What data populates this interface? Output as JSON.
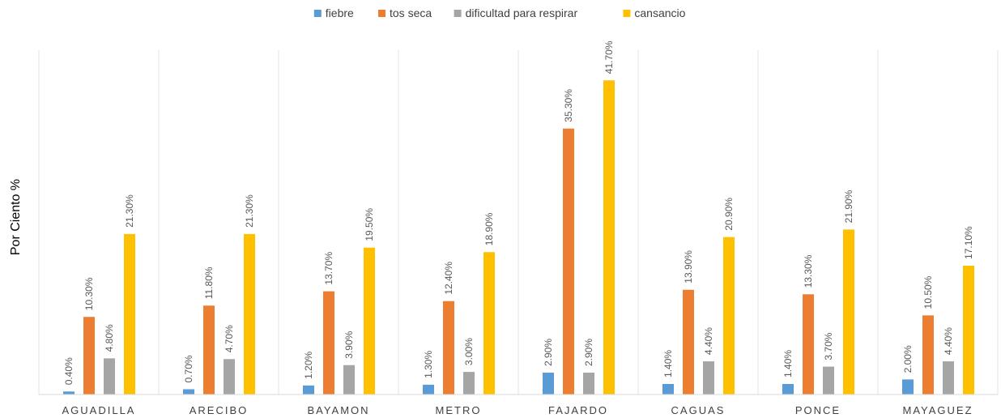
{
  "chart_data": {
    "type": "bar",
    "title": "",
    "xlabel": "",
    "ylabel": "Por Ciento %",
    "ylim": [
      0,
      45
    ],
    "grid": "vertical separators between categories",
    "legend_position": "top",
    "categories": [
      "AGUADILLA",
      "ARECIBO",
      "BAYAMON",
      "METRO",
      "FAJARDO",
      "CAGUAS",
      "PONCE",
      "MAYAGUEZ"
    ],
    "series": [
      {
        "name": "fiebre",
        "color": "#5B9BD5",
        "values": [
          0.4,
          0.7,
          1.2,
          1.3,
          2.9,
          1.4,
          1.4,
          2.0
        ],
        "labels": [
          "0.40%",
          "0.70%",
          "1.20%",
          "1.30%",
          "2.90%",
          "1.40%",
          "1.40%",
          "2.00%"
        ]
      },
      {
        "name": "tos seca",
        "color": "#ED7D31",
        "values": [
          10.3,
          11.8,
          13.7,
          12.4,
          35.3,
          13.9,
          13.3,
          10.5
        ],
        "labels": [
          "10.30%",
          "11.80%",
          "13.70%",
          "12.40%",
          "35.30%",
          "13.90%",
          "13.30%",
          "10.50%"
        ]
      },
      {
        "name": "dificultad para respirar",
        "color": "#A5A5A5",
        "values": [
          4.8,
          4.7,
          3.9,
          3.0,
          2.9,
          4.4,
          3.7,
          4.4
        ],
        "labels": [
          "4.80%",
          "4.70%",
          "3.90%",
          "3.00%",
          "2.90%",
          "4.40%",
          "3.70%",
          "4.40%"
        ]
      },
      {
        "name": "cansancio",
        "color": "#FFC000",
        "values": [
          21.3,
          21.3,
          19.5,
          18.9,
          41.7,
          20.9,
          21.9,
          17.1
        ],
        "labels": [
          "21.30%",
          "21.30%",
          "19.50%",
          "18.90%",
          "41.70%",
          "20.90%",
          "21.90%",
          "17.10%"
        ]
      }
    ]
  }
}
